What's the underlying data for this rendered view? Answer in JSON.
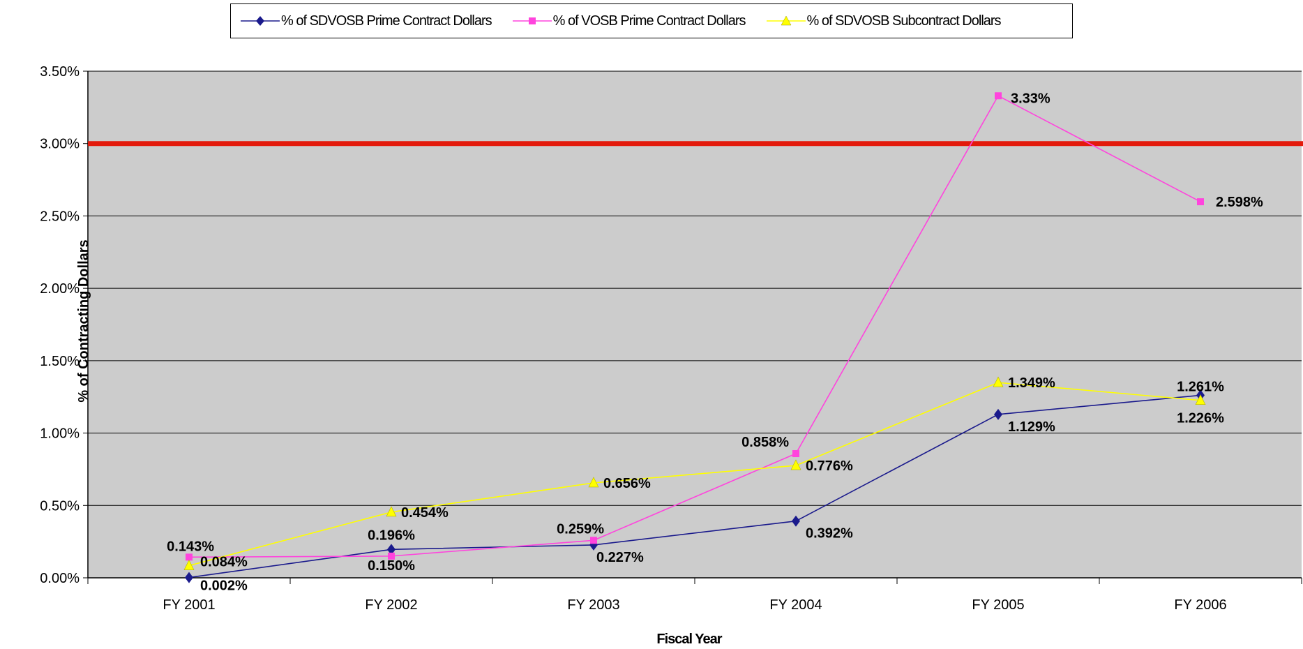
{
  "chart_data": {
    "type": "line",
    "categories": [
      "FY 2001",
      "FY 2002",
      "FY 2003",
      "FY 2004",
      "FY 2005",
      "FY 2006"
    ],
    "series": [
      {
        "name": "% of SDVOSB Prime Contract Dollars",
        "values": [
          0.002,
          0.196,
          0.227,
          0.392,
          1.129,
          1.261
        ],
        "labels": [
          "0.002%",
          "0.196%",
          "0.227%",
          "0.392%",
          "1.129%",
          "1.261%"
        ],
        "color": "#1a1a8c",
        "marker": "diamond"
      },
      {
        "name": "% of VOSB Prime Contract Dollars",
        "values": [
          0.143,
          0.15,
          0.259,
          0.858,
          3.33,
          2.598
        ],
        "labels": [
          "0.143%",
          "0.150%",
          "0.259%",
          "0.858%",
          "3.33%",
          "2.598%"
        ],
        "color": "#ff44dd",
        "marker": "square"
      },
      {
        "name": "% of SDVOSB Subcontract Dollars",
        "values": [
          0.084,
          0.454,
          0.656,
          0.776,
          1.349,
          1.226
        ],
        "labels": [
          "0.084%",
          "0.454%",
          "0.656%",
          "0.776%",
          "1.349%",
          "1.226%"
        ],
        "color": "#ffff00",
        "marker": "triangle"
      }
    ],
    "reference_line": {
      "value": 3.0,
      "color": "#e31a0b"
    },
    "xlabel": "Fiscal Year",
    "ylabel": "% of Contracting Dollars",
    "ylim": [
      0,
      3.5
    ],
    "yticks": [
      "0.00%",
      "0.50%",
      "1.00%",
      "1.50%",
      "2.00%",
      "2.50%",
      "3.00%",
      "3.50%"
    ],
    "grid": true,
    "plot_background": "#cccccc",
    "legend_position": "top"
  }
}
